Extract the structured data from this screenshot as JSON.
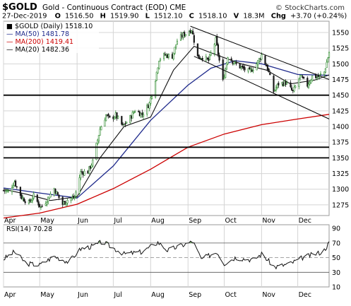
{
  "header": {
    "symbol": "$GOLD",
    "name": "Gold - Continuous Contract (EOD)",
    "exchange": "CME",
    "brand": "© StockCharts.com",
    "date": "27-Dec-2019",
    "quote": {
      "o_label": "O",
      "o": "1516.50",
      "h_label": "H",
      "h": "1519.90",
      "l_label": "L",
      "l": "1512.10",
      "c_label": "C",
      "c": "1518.10",
      "v_label": "V",
      "v": "18.3M",
      "chg_label": "Chg",
      "chg": "+3.70 (+0.24%)"
    }
  },
  "legend": [
    {
      "label": "■ $GOLD (Daily) 1518.10",
      "color": "#000000"
    },
    {
      "label": "— MA(50) 1481.78",
      "color": "#1f2a8c"
    },
    {
      "label": "— MA(200) 1419.41",
      "color": "#cc0000"
    },
    {
      "label": "— MA(20) 1482.36",
      "color": "#000000"
    }
  ],
  "rsi_label": "RSI(14) 70.28",
  "colors": {
    "up": "#2d8a2d",
    "down": "#1a1a1a",
    "ma50": "#1f2a8c",
    "ma200": "#cc0000",
    "ma20": "#111111",
    "grid": "#d4d4d4",
    "channel": "#000000",
    "level": "#000000",
    "rsi_fill": "#7aaa6e"
  },
  "chart_data": [
    {
      "type": "candlestick",
      "x_start": "2019-04-01",
      "x_end": "2019-12-27",
      "x_ticks": [
        "Apr",
        "May",
        "Jun",
        "Jul",
        "Aug",
        "Sep",
        "Oct",
        "Nov",
        "Dec"
      ],
      "x_tick_dates": [
        "2019-04-01",
        "2019-05-01",
        "2019-06-01",
        "2019-07-01",
        "2019-08-01",
        "2019-09-01",
        "2019-10-01",
        "2019-11-01",
        "2019-12-01"
      ],
      "y_ticks": [
        "1275",
        "1300",
        "1325",
        "1350",
        "1375",
        "1400",
        "1425",
        "1450",
        "1475",
        "1500",
        "1525",
        "1550"
      ],
      "ylim": [
        1258,
        1568
      ],
      "grid": true,
      "legend_position": "top-left",
      "close": [
        {
          "date": "2019-04-01",
          "value": 1298
        },
        {
          "date": "2019-04-05",
          "value": 1296
        },
        {
          "date": "2019-04-10",
          "value": 1312
        },
        {
          "date": "2019-04-16",
          "value": 1287
        },
        {
          "date": "2019-04-22",
          "value": 1278
        },
        {
          "date": "2019-04-26",
          "value": 1289
        },
        {
          "date": "2019-05-02",
          "value": 1271
        },
        {
          "date": "2019-05-07",
          "value": 1283
        },
        {
          "date": "2019-05-13",
          "value": 1301
        },
        {
          "date": "2019-05-20",
          "value": 1276
        },
        {
          "date": "2019-05-24",
          "value": 1283
        },
        {
          "date": "2019-05-30",
          "value": 1287
        },
        {
          "date": "2019-06-04",
          "value": 1327
        },
        {
          "date": "2019-06-10",
          "value": 1328
        },
        {
          "date": "2019-06-14",
          "value": 1344
        },
        {
          "date": "2019-06-20",
          "value": 1396
        },
        {
          "date": "2019-06-25",
          "value": 1418
        },
        {
          "date": "2019-06-28",
          "value": 1412
        },
        {
          "date": "2019-07-03",
          "value": 1418
        },
        {
          "date": "2019-07-09",
          "value": 1400
        },
        {
          "date": "2019-07-15",
          "value": 1414
        },
        {
          "date": "2019-07-19",
          "value": 1426
        },
        {
          "date": "2019-07-25",
          "value": 1419
        },
        {
          "date": "2019-07-31",
          "value": 1437
        },
        {
          "date": "2019-08-05",
          "value": 1476
        },
        {
          "date": "2019-08-08",
          "value": 1508
        },
        {
          "date": "2019-08-13",
          "value": 1514
        },
        {
          "date": "2019-08-19",
          "value": 1512
        },
        {
          "date": "2019-08-23",
          "value": 1537
        },
        {
          "date": "2019-08-28",
          "value": 1546
        },
        {
          "date": "2019-09-04",
          "value": 1555
        },
        {
          "date": "2019-09-09",
          "value": 1511
        },
        {
          "date": "2019-09-13",
          "value": 1511
        },
        {
          "date": "2019-09-18",
          "value": 1505
        },
        {
          "date": "2019-09-24",
          "value": 1538
        },
        {
          "date": "2019-09-30",
          "value": 1472
        },
        {
          "date": "2019-10-04",
          "value": 1513
        },
        {
          "date": "2019-10-10",
          "value": 1500
        },
        {
          "date": "2019-10-16",
          "value": 1493
        },
        {
          "date": "2019-10-22",
          "value": 1487
        },
        {
          "date": "2019-10-28",
          "value": 1500
        },
        {
          "date": "2019-11-01",
          "value": 1514
        },
        {
          "date": "2019-11-06",
          "value": 1493
        },
        {
          "date": "2019-11-11",
          "value": 1456
        },
        {
          "date": "2019-11-15",
          "value": 1468
        },
        {
          "date": "2019-11-21",
          "value": 1470
        },
        {
          "date": "2019-11-27",
          "value": 1455
        },
        {
          "date": "2019-12-03",
          "value": 1480
        },
        {
          "date": "2019-12-09",
          "value": 1466
        },
        {
          "date": "2019-12-13",
          "value": 1480
        },
        {
          "date": "2019-12-18",
          "value": 1479
        },
        {
          "date": "2019-12-23",
          "value": 1487
        },
        {
          "date": "2019-12-27",
          "value": 1518
        }
      ],
      "ma50": [
        {
          "date": "2019-04-01",
          "value": 1302
        },
        {
          "date": "2019-05-01",
          "value": 1294
        },
        {
          "date": "2019-06-01",
          "value": 1286
        },
        {
          "date": "2019-07-01",
          "value": 1337
        },
        {
          "date": "2019-08-01",
          "value": 1410
        },
        {
          "date": "2019-09-01",
          "value": 1466
        },
        {
          "date": "2019-09-20",
          "value": 1493
        },
        {
          "date": "2019-10-10",
          "value": 1505
        },
        {
          "date": "2019-11-01",
          "value": 1500
        },
        {
          "date": "2019-12-01",
          "value": 1483
        },
        {
          "date": "2019-12-27",
          "value": 1481.78
        }
      ],
      "ma200": [
        {
          "date": "2019-04-01",
          "value": 1254
        },
        {
          "date": "2019-05-01",
          "value": 1262
        },
        {
          "date": "2019-06-01",
          "value": 1276
        },
        {
          "date": "2019-07-01",
          "value": 1301
        },
        {
          "date": "2019-08-01",
          "value": 1332
        },
        {
          "date": "2019-09-01",
          "value": 1367
        },
        {
          "date": "2019-10-01",
          "value": 1388
        },
        {
          "date": "2019-11-01",
          "value": 1403
        },
        {
          "date": "2019-12-01",
          "value": 1412
        },
        {
          "date": "2019-12-27",
          "value": 1419.41
        }
      ],
      "ma20": [
        {
          "date": "2019-04-01",
          "value": 1300
        },
        {
          "date": "2019-04-20",
          "value": 1292
        },
        {
          "date": "2019-05-10",
          "value": 1282
        },
        {
          "date": "2019-06-01",
          "value": 1288
        },
        {
          "date": "2019-06-20",
          "value": 1350
        },
        {
          "date": "2019-07-10",
          "value": 1400
        },
        {
          "date": "2019-08-01",
          "value": 1415
        },
        {
          "date": "2019-08-20",
          "value": 1490
        },
        {
          "date": "2019-09-06",
          "value": 1528
        },
        {
          "date": "2019-09-25",
          "value": 1514
        },
        {
          "date": "2019-10-15",
          "value": 1500
        },
        {
          "date": "2019-11-05",
          "value": 1490
        },
        {
          "date": "2019-11-25",
          "value": 1468
        },
        {
          "date": "2019-12-15",
          "value": 1474
        },
        {
          "date": "2019-12-27",
          "value": 1482.36
        }
      ],
      "horizontal_levels": [
        1450,
        1367,
        1350
      ],
      "trend_channel": {
        "upper": [
          {
            "date": "2019-09-03",
            "value": 1560
          },
          {
            "date": "2019-12-27",
            "value": 1475
          }
        ],
        "lower": [
          {
            "date": "2019-09-06",
            "value": 1512
          },
          {
            "date": "2019-12-27",
            "value": 1412
          }
        ]
      }
    },
    {
      "type": "line",
      "name": "RSI(14)",
      "ylim": [
        10,
        95
      ],
      "y_ticks": [
        "90",
        "70",
        "50",
        "30",
        "10"
      ],
      "reference_lines": [
        70,
        50,
        30
      ],
      "values": [
        {
          "date": "2019-04-01",
          "value": 48
        },
        {
          "date": "2019-04-10",
          "value": 58
        },
        {
          "date": "2019-04-20",
          "value": 42
        },
        {
          "date": "2019-05-01",
          "value": 40
        },
        {
          "date": "2019-05-13",
          "value": 52
        },
        {
          "date": "2019-05-25",
          "value": 44
        },
        {
          "date": "2019-06-04",
          "value": 62
        },
        {
          "date": "2019-06-15",
          "value": 66
        },
        {
          "date": "2019-06-22",
          "value": 72
        },
        {
          "date": "2019-06-28",
          "value": 66
        },
        {
          "date": "2019-07-10",
          "value": 55
        },
        {
          "date": "2019-07-25",
          "value": 58
        },
        {
          "date": "2019-08-07",
          "value": 71
        },
        {
          "date": "2019-08-15",
          "value": 60
        },
        {
          "date": "2019-08-29",
          "value": 68
        },
        {
          "date": "2019-09-05",
          "value": 72
        },
        {
          "date": "2019-09-12",
          "value": 48
        },
        {
          "date": "2019-09-25",
          "value": 58
        },
        {
          "date": "2019-10-01",
          "value": 42
        },
        {
          "date": "2019-10-10",
          "value": 50
        },
        {
          "date": "2019-10-25",
          "value": 47
        },
        {
          "date": "2019-11-01",
          "value": 55
        },
        {
          "date": "2019-11-12",
          "value": 37
        },
        {
          "date": "2019-11-25",
          "value": 42
        },
        {
          "date": "2019-12-05",
          "value": 50
        },
        {
          "date": "2019-12-15",
          "value": 55
        },
        {
          "date": "2019-12-22",
          "value": 58
        },
        {
          "date": "2019-12-27",
          "value": 70.28
        }
      ]
    }
  ]
}
